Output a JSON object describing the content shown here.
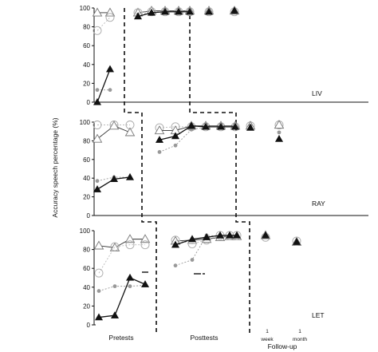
{
  "chart_data": {
    "type": "line",
    "ylabel": "Accuracy speech percentage (%)",
    "x_groups": [
      "Pretests",
      "Posttests",
      "Follow-up"
    ],
    "follow_up_ticks": [
      {
        "line1": "1",
        "line2": "week"
      },
      {
        "line1": "1",
        "line2": "month"
      }
    ],
    "yticks": [
      0,
      20,
      40,
      60,
      80,
      100
    ],
    "ylim": [
      0,
      100
    ],
    "colors": {
      "black": "#111111",
      "gray": "#999999",
      "light": "#bbbbbb"
    },
    "panels": [
      {
        "name": "LIV",
        "pre_x": [
          1,
          2
        ],
        "post_x": [
          4,
          5,
          6,
          7,
          8
        ],
        "fu_x": [
          9,
          10
        ],
        "series": [
          {
            "marker": "open-triangle",
            "pre": [
              95,
              95
            ],
            "post": [
              95,
              97,
              97,
              97,
              97
            ],
            "fu": [
              97,
              97
            ]
          },
          {
            "marker": "open-circle",
            "pre": [
              76,
              90
            ],
            "post": [
              95,
              96,
              96,
              96,
              96
            ],
            "fu": [
              96,
              96
            ]
          },
          {
            "marker": "gray-dot",
            "pre": [
              13,
              13
            ],
            "post": [
              93,
              95,
              96,
              96,
              96
            ],
            "fu": [
              96,
              96
            ]
          },
          {
            "marker": "filled-triangle",
            "pre": [
              0,
              35
            ],
            "post": [
              91,
              95,
              96,
              96,
              96
            ],
            "fu": [
              96,
              97
            ]
          }
        ]
      },
      {
        "name": "RAY",
        "pre_x": [
          1,
          2,
          3
        ],
        "post_x": [
          4,
          5,
          6,
          7,
          8,
          9
        ],
        "fu_x": [
          10,
          11
        ],
        "series": [
          {
            "marker": "open-circle",
            "pre": [
              97,
              97,
              97
            ],
            "post": [
              94,
              95,
              95,
              95,
              95,
              95
            ],
            "fu": [
              96,
              97
            ]
          },
          {
            "marker": "open-triangle",
            "pre": [
              82,
              96,
              89
            ],
            "post": [
              91,
              91,
              96,
              96,
              96,
              96
            ],
            "fu": [
              96,
              97
            ]
          },
          {
            "marker": "gray-dot",
            "pre": [
              37,
              41,
              41
            ],
            "post": [
              68,
              75,
              92,
              95,
              95,
              95
            ],
            "fu": [
              96,
              89
            ]
          },
          {
            "marker": "filled-triangle",
            "pre": [
              28,
              39,
              41
            ],
            "post": [
              81,
              85,
              96,
              95,
              95,
              95
            ],
            "fu": [
              94,
              82
            ]
          }
        ]
      },
      {
        "name": "LET",
        "pre_x": [
          1,
          2,
          3,
          4
        ],
        "post_x": [
          5,
          6,
          7,
          8,
          9,
          10
        ],
        "fu_x": [
          11,
          12
        ],
        "series": [
          {
            "marker": "open-triangle",
            "pre": [
              84,
              82,
              91,
              91
            ],
            "post": [
              89,
              90,
              91,
              93,
              94,
              94
            ],
            "fu": [
              95,
              88
            ]
          },
          {
            "marker": "open-circle",
            "pre": [
              55,
              83,
              85,
              85
            ],
            "post": [
              90,
              86,
              90,
              95,
              95,
              95
            ],
            "fu": [
              93,
              89
            ]
          },
          {
            "marker": "gray-dot",
            "pre": [
              36,
              41,
              41,
              42
            ],
            "post": [
              63,
              69,
              95,
              94,
              95,
              95
            ],
            "fu": [
              95,
              88
            ]
          },
          {
            "marker": "filled-triangle",
            "pre": [
              8,
              10,
              50,
              43
            ],
            "post": [
              85,
              91,
              93,
              95,
              95,
              95
            ],
            "fu": [
              95,
              88
            ]
          }
        ]
      }
    ]
  }
}
